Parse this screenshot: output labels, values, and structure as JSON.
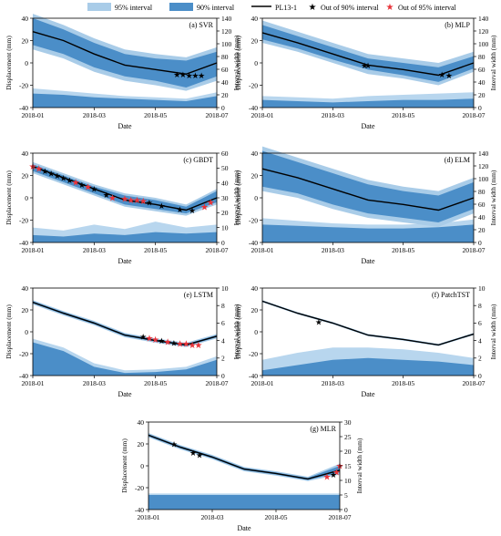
{
  "legend": {
    "items": [
      {
        "key": "band95",
        "label": "95% interval",
        "color": "#a9cce8"
      },
      {
        "key": "band90",
        "label": "90% interval",
        "color": "#4b8ec8"
      },
      {
        "key": "line",
        "label": "PL13-1",
        "color": "#000000"
      },
      {
        "key": "out90",
        "label": "Out of 90% interval",
        "color": "#000000",
        "marker": "star"
      },
      {
        "key": "out95",
        "label": "Out of 95% interval",
        "color": "#e8343a",
        "marker": "star"
      }
    ]
  },
  "colors": {
    "band95": "#a9cce8",
    "band90": "#4b8ec8",
    "line": "#000000",
    "out90": "#000000",
    "out95": "#e8343a",
    "area95": "#b8d6ee",
    "area90": "#4b8ec8"
  },
  "chart_data": [
    {
      "id": "svr",
      "type": "area",
      "title": "(a) SVR",
      "xlabel": "Date",
      "ylabel": "Displacement (mm)",
      "y2label": "Interval width (mm)",
      "x": [
        0,
        1,
        2,
        3,
        4,
        5,
        6
      ],
      "xticks": [
        "2018-01",
        "2018-03",
        "2018-05",
        "2018-07"
      ],
      "xlim": [
        0,
        6
      ],
      "xtick_pos": [
        0,
        2,
        4,
        6
      ],
      "ylim": [
        -40,
        40
      ],
      "yticks": [
        -40,
        -20,
        0,
        20,
        40
      ],
      "y2lim": [
        0,
        140
      ],
      "y2ticks": [
        0,
        20,
        40,
        60,
        80,
        100,
        120,
        140
      ],
      "series": [
        {
          "name": "PL13-1",
          "values": [
            28,
            20,
            8,
            -2,
            -6,
            -10,
            0
          ]
        }
      ],
      "bands": [
        {
          "name": "95% interval",
          "lower": [
            12,
            4,
            -8,
            -16,
            -20,
            -25,
            -16
          ],
          "upper": [
            44,
            34,
            22,
            12,
            8,
            5,
            14
          ]
        },
        {
          "name": "90% interval",
          "lower": [
            16,
            8,
            -4,
            -12,
            -16,
            -22,
            -12
          ],
          "upper": [
            40,
            30,
            18,
            8,
            4,
            2,
            10
          ]
        }
      ],
      "width95": [
        30,
        26,
        22,
        18,
        16,
        14,
        24
      ],
      "width90": [
        22,
        20,
        16,
        14,
        12,
        10,
        18
      ],
      "out90": {
        "x": [
          4.7,
          4.9,
          5.1,
          5.3,
          5.5
        ],
        "y": [
          -10,
          -10,
          -11,
          -11,
          -11
        ]
      },
      "out95": {
        "x": [],
        "y": []
      }
    },
    {
      "id": "mlp",
      "type": "area",
      "title": "(b) MLP",
      "xlabel": "Date",
      "ylabel": "Displacement (mm)",
      "y2label": "Interval width (mm)",
      "x": [
        0,
        1,
        2,
        3,
        4,
        5,
        6
      ],
      "xticks": [
        "2018-01",
        "2018-03",
        "2018-05",
        "2018-07"
      ],
      "xlim": [
        0,
        6
      ],
      "xtick_pos": [
        0,
        2,
        4,
        6
      ],
      "ylim": [
        -40,
        40
      ],
      "yticks": [
        -40,
        -20,
        0,
        20,
        40
      ],
      "y2lim": [
        0,
        140
      ],
      "y2ticks": [
        0,
        20,
        40,
        60,
        80,
        100,
        120,
        140
      ],
      "series": [
        {
          "name": "PL13-1",
          "values": [
            27,
            18,
            8,
            -2,
            -6,
            -11,
            0
          ]
        }
      ],
      "bands": [
        {
          "name": "95% interval",
          "lower": [
            18,
            10,
            0,
            -10,
            -14,
            -20,
            -8
          ],
          "upper": [
            38,
            28,
            18,
            8,
            4,
            0,
            10
          ]
        },
        {
          "name": "90% interval",
          "lower": [
            21,
            13,
            3,
            -6,
            -11,
            -17,
            -5
          ],
          "upper": [
            34,
            24,
            14,
            4,
            0,
            -4,
            6
          ]
        }
      ],
      "width95": [
        18,
        16,
        14,
        18,
        20,
        22,
        24
      ],
      "width90": [
        12,
        10,
        8,
        10,
        12,
        12,
        14
      ],
      "out90": {
        "x": [
          2.9,
          3.0,
          5.1,
          5.3
        ],
        "y": [
          -2,
          -2,
          -10,
          -11
        ]
      },
      "out95": {
        "x": [],
        "y": []
      }
    },
    {
      "id": "gbdt",
      "type": "area",
      "title": "(c) GBDT",
      "xlabel": "Date",
      "ylabel": "Displacement (mm)",
      "y2label": "Interval width (mm)",
      "x": [
        0,
        1,
        2,
        3,
        4,
        5,
        6
      ],
      "xticks": [
        "2018-01",
        "2018-03",
        "2018-05",
        "2018-07"
      ],
      "xlim": [
        0,
        6
      ],
      "xtick_pos": [
        0,
        2,
        4,
        6
      ],
      "ylim": [
        -40,
        40
      ],
      "yticks": [
        -40,
        -20,
        0,
        20,
        40
      ],
      "y2lim": [
        0,
        60
      ],
      "y2ticks": [
        0,
        10,
        20,
        30,
        40,
        50,
        60
      ],
      "series": [
        {
          "name": "PL13-1",
          "values": [
            28,
            18,
            8,
            -2,
            -6,
            -11,
            0
          ]
        }
      ],
      "bands": [
        {
          "name": "95% interval",
          "lower": [
            22,
            12,
            2,
            -8,
            -12,
            -16,
            -6
          ],
          "upper": [
            32,
            22,
            12,
            4,
            0,
            -6,
            8
          ]
        },
        {
          "name": "90% interval",
          "lower": [
            24,
            14,
            4,
            -6,
            -10,
            -14,
            -4
          ],
          "upper": [
            30,
            20,
            10,
            2,
            -2,
            -8,
            6
          ]
        }
      ],
      "width95": [
        10,
        8,
        12,
        9,
        14,
        10,
        12
      ],
      "width90": [
        5,
        4,
        6,
        5,
        7,
        6,
        7
      ],
      "out90": {
        "x": [
          0.4,
          0.6,
          0.8,
          1.0,
          1.2,
          1.6,
          2.0,
          2.4,
          3.8,
          4.2,
          4.8,
          5.2
        ],
        "y": [
          24,
          22,
          20,
          18,
          16,
          12,
          8,
          3,
          -4,
          -7,
          -10,
          -11
        ]
      },
      "out95": {
        "x": [
          0.0,
          0.2,
          1.4,
          1.8,
          2.6,
          3.0,
          3.2,
          3.4,
          3.6,
          5.6,
          5.8
        ],
        "y": [
          28,
          26,
          14,
          10,
          0,
          -1,
          -2,
          -2,
          -3,
          -8,
          -4
        ]
      }
    },
    {
      "id": "elm",
      "type": "area",
      "title": "(d) ELM",
      "xlabel": "Date",
      "ylabel": "Displacement (mm)",
      "y2label": "Interval width (mm)",
      "x": [
        0,
        1,
        2,
        3,
        4,
        5,
        6
      ],
      "xticks": [
        "2018-01",
        "2018-03",
        "2018-05",
        "2018-07"
      ],
      "xlim": [
        0,
        6
      ],
      "xtick_pos": [
        0,
        2,
        4,
        6
      ],
      "ylim": [
        -40,
        40
      ],
      "yticks": [
        -40,
        -20,
        0,
        20,
        40
      ],
      "y2lim": [
        0,
        140
      ],
      "y2ticks": [
        0,
        20,
        40,
        60,
        80,
        100,
        120,
        140
      ],
      "series": [
        {
          "name": "PL13-1",
          "values": [
            26,
            18,
            8,
            -2,
            -6,
            -11,
            0
          ]
        }
      ],
      "bands": [
        {
          "name": "95% interval",
          "lower": [
            6,
            0,
            -10,
            -18,
            -22,
            -26,
            -14
          ],
          "upper": [
            46,
            36,
            26,
            16,
            10,
            6,
            18
          ]
        },
        {
          "name": "90% interval",
          "lower": [
            10,
            4,
            -6,
            -14,
            -18,
            -22,
            -10
          ],
          "upper": [
            42,
            32,
            22,
            12,
            6,
            2,
            14
          ]
        }
      ],
      "width95": [
        38,
        34,
        30,
        28,
        28,
        30,
        36
      ],
      "width90": [
        28,
        26,
        24,
        22,
        22,
        24,
        28
      ],
      "out90": {
        "x": [],
        "y": []
      },
      "out95": {
        "x": [],
        "y": []
      }
    },
    {
      "id": "lstm",
      "type": "area",
      "title": "(e) LSTM",
      "xlabel": "Date",
      "ylabel": "Displacement (mm)",
      "y2label": "Interval width (mm)",
      "x": [
        0,
        1,
        2,
        3,
        4,
        5,
        6
      ],
      "xticks": [
        "2018-01",
        "2018-03",
        "2018-05",
        "2018-07"
      ],
      "xlim": [
        0,
        6
      ],
      "xtick_pos": [
        0,
        2,
        4,
        6
      ],
      "ylim": [
        -40,
        40
      ],
      "yticks": [
        -40,
        -20,
        0,
        20,
        40
      ],
      "y2lim": [
        0,
        10
      ],
      "y2ticks": [
        0,
        2,
        4,
        6,
        8,
        10
      ],
      "series": [
        {
          "name": "PL13-1",
          "values": [
            27,
            17,
            8,
            -3,
            -8,
            -12,
            -4
          ]
        }
      ],
      "bands": [
        {
          "name": "95% interval",
          "lower": [
            25,
            15,
            6,
            -5,
            -10,
            -14,
            -6
          ],
          "upper": [
            29,
            19,
            10,
            -1,
            -6,
            -10,
            -2
          ]
        },
        {
          "name": "90% interval",
          "lower": [
            26,
            16,
            7,
            -4,
            -9,
            -13,
            -5
          ],
          "upper": [
            28,
            18,
            9,
            -2,
            -7,
            -11,
            -3
          ]
        }
      ],
      "width95": [
        4.2,
        3.2,
        1.4,
        0.6,
        0.7,
        1.0,
        2.2
      ],
      "width90": [
        3.8,
        2.8,
        1.0,
        0.3,
        0.4,
        0.7,
        1.8
      ],
      "out90": {
        "x": [
          3.6,
          4.2,
          4.6
        ],
        "y": [
          -4,
          -8,
          -10
        ]
      },
      "out95": {
        "x": [
          3.8,
          4.0,
          4.4,
          4.8,
          5.0,
          5.2,
          5.4
        ],
        "y": [
          -6,
          -7,
          -9,
          -11,
          -11,
          -12,
          -12
        ]
      }
    },
    {
      "id": "patchtst",
      "type": "area",
      "title": "(f) PatchTST",
      "xlabel": "Date",
      "ylabel": "Displacement (mm)",
      "y2label": "Interval width (mm)",
      "x": [
        0,
        1,
        2,
        3,
        4,
        5,
        6
      ],
      "xticks": [
        "2018-01",
        "2018-03",
        "2018-05",
        "2018-07"
      ],
      "xlim": [
        0,
        6
      ],
      "xtick_pos": [
        0,
        2,
        4,
        6
      ],
      "ylim": [
        -40,
        40
      ],
      "yticks": [
        -40,
        -20,
        0,
        20,
        40
      ],
      "y2lim": [
        0,
        10
      ],
      "y2ticks": [
        0,
        2,
        4,
        6,
        8,
        10
      ],
      "series": [
        {
          "name": "PL13-1",
          "values": [
            28,
            17,
            8,
            -3,
            -7,
            -12,
            -2
          ]
        }
      ],
      "bands": [
        {
          "name": "95% interval",
          "lower": [
            27,
            16,
            7,
            -4,
            -8,
            -13,
            -3
          ],
          "upper": [
            29,
            18,
            9,
            -2,
            -6,
            -11,
            -1
          ]
        },
        {
          "name": "90% interval",
          "lower": [
            27.5,
            16.5,
            7.5,
            -3.5,
            -7.5,
            -12.5,
            -2.5
          ],
          "upper": [
            28.5,
            17.5,
            8.5,
            -2.5,
            -6.5,
            -11.5,
            -1.5
          ]
        }
      ],
      "width95": [
        1.8,
        2.6,
        3.2,
        3.2,
        3.0,
        2.6,
        2.0
      ],
      "width90": [
        0.6,
        1.2,
        1.8,
        2.0,
        1.8,
        1.6,
        1.2
      ],
      "out90": {
        "x": [
          1.6
        ],
        "y": [
          9
        ]
      },
      "out95": {
        "x": [],
        "y": []
      }
    },
    {
      "id": "mlr",
      "type": "area",
      "title": "(g) MLR",
      "xlabel": "Date",
      "ylabel": "Displacement (mm)",
      "y2label": "Interval width (mm)",
      "x": [
        0,
        1,
        2,
        3,
        4,
        5,
        6
      ],
      "xticks": [
        "2018-01",
        "2018-03",
        "2018-05",
        "2018-07"
      ],
      "xlim": [
        0,
        6
      ],
      "xtick_pos": [
        0,
        2,
        4,
        6
      ],
      "ylim": [
        -40,
        40
      ],
      "yticks": [
        -40,
        -20,
        0,
        20,
        40
      ],
      "y2lim": [
        0,
        30
      ],
      "y2ticks": [
        0,
        5,
        10,
        15,
        20,
        25,
        30
      ],
      "series": [
        {
          "name": "PL13-1",
          "values": [
            28,
            17,
            8,
            -3,
            -7,
            -12,
            -4
          ]
        }
      ],
      "bands": [
        {
          "name": "95% interval",
          "lower": [
            26,
            15,
            6,
            -5,
            -9,
            -14,
            -8
          ],
          "upper": [
            30,
            19,
            10,
            -1,
            -5,
            -10,
            2
          ]
        },
        {
          "name": "90% interval",
          "lower": [
            27,
            16,
            7,
            -4,
            -8,
            -13,
            -6
          ],
          "upper": [
            29,
            18,
            9,
            -2,
            -6,
            -11,
            0
          ]
        }
      ],
      "width95": [
        5.5,
        5.5,
        5.5,
        5.5,
        5.5,
        5.5,
        5.5
      ],
      "width90": [
        5.0,
        5.0,
        5.0,
        5.0,
        5.0,
        5.0,
        5.0
      ],
      "out90": {
        "x": [
          0.8,
          1.4,
          1.6,
          5.8
        ],
        "y": [
          20,
          12,
          10,
          -8
        ]
      },
      "out95": {
        "x": [
          5.6,
          5.9,
          6.0
        ],
        "y": [
          -10,
          -6,
          0
        ]
      }
    }
  ]
}
